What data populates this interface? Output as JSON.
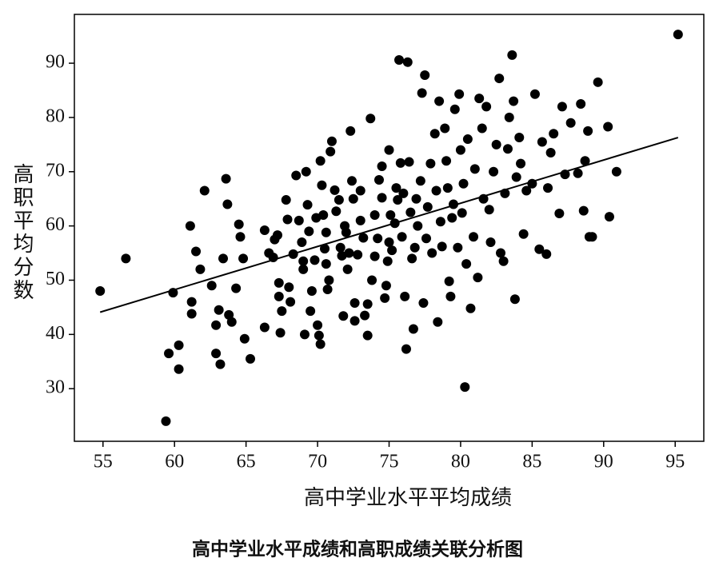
{
  "chart_data": {
    "type": "scatter",
    "title": "高中学业水平成绩和高职成绩关联分析图",
    "x_label": "高中学业水平平均成绩",
    "y_label": "高职平均分数",
    "color": "#000000",
    "xlim": [
      53,
      97
    ],
    "xticks": [
      55,
      60,
      65,
      70,
      75,
      80,
      85,
      90,
      95
    ],
    "ylim": [
      20.3,
      99
    ],
    "yticks": [
      30,
      40,
      50,
      60,
      70,
      80,
      90
    ],
    "grid": false,
    "x": [
      54.8,
      56.6,
      59.4,
      59.6,
      59.9,
      60.3,
      60.3,
      61.1,
      61.2,
      61.2,
      61.5,
      61.8,
      62.1,
      62.6,
      62.9,
      62.9,
      63.1,
      63.2,
      63.4,
      63.6,
      63.7,
      63.8,
      64,
      64.3,
      64.5,
      64.6,
      64.8,
      64.9,
      65.3,
      66.3,
      66.3,
      66.6,
      66.9,
      67,
      67.2,
      67.3,
      67.3,
      67.4,
      67.5,
      67.8,
      67.9,
      68,
      68.1,
      68.3,
      68.5,
      68.7,
      68.9,
      69,
      69,
      69.1,
      69.2,
      69.3,
      69.4,
      69.5,
      69.6,
      69.8,
      69.9,
      70,
      70.1,
      70.2,
      70.2,
      70.3,
      70.4,
      70.5,
      70.6,
      70.6,
      70.7,
      70.8,
      70.9,
      71,
      71.2,
      71.3,
      71.5,
      71.6,
      71.7,
      71.8,
      71.9,
      72,
      72.1,
      72.2,
      72.3,
      72.4,
      72.5,
      72.6,
      72.6,
      72.8,
      73,
      73,
      73.2,
      73.3,
      73.5,
      73.5,
      73.7,
      73.8,
      74,
      74,
      74.2,
      74.3,
      74.5,
      74.5,
      74.7,
      74.8,
      74.9,
      75,
      75,
      75.1,
      75.2,
      75.4,
      75.5,
      75.6,
      75.7,
      75.8,
      75.9,
      76,
      76.1,
      76.2,
      76.3,
      76.4,
      76.5,
      76.6,
      76.7,
      76.8,
      76.9,
      77,
      77.2,
      77.3,
      77.4,
      77.5,
      77.6,
      77.7,
      77.9,
      78,
      78.2,
      78.3,
      78.4,
      78.5,
      78.6,
      78.7,
      78.9,
      79,
      79.1,
      79.2,
      79.3,
      79.4,
      79.5,
      79.6,
      79.8,
      79.9,
      80,
      80.1,
      80.2,
      80.3,
      80.4,
      80.5,
      80.7,
      80.9,
      81,
      81.2,
      81.3,
      81.5,
      81.6,
      81.8,
      82,
      82.1,
      82.3,
      82.5,
      82.7,
      82.8,
      83,
      83.1,
      83.3,
      83.4,
      83.6,
      83.7,
      83.8,
      83.9,
      84.1,
      84.2,
      84.4,
      84.6,
      85,
      85.2,
      85.5,
      85.7,
      86,
      86.1,
      86.3,
      86.5,
      86.9,
      87.1,
      87.3,
      87.7,
      88.2,
      88.4,
      88.6,
      88.7,
      88.9,
      89,
      89.2,
      89.6,
      90.3,
      90.4,
      90.9,
      95.2
    ],
    "y": [
      48,
      54,
      24,
      36.5,
      47.7,
      38,
      33.6,
      60,
      46,
      43.8,
      55.3,
      52,
      66.5,
      49,
      36.5,
      41.7,
      44.5,
      34.5,
      54,
      68.7,
      64,
      43.6,
      42.3,
      48.5,
      60.3,
      58,
      54,
      39.2,
      35.5,
      41.3,
      59.2,
      55,
      54.2,
      57.5,
      58.3,
      49.5,
      47,
      40.3,
      44.3,
      64.8,
      61.2,
      48.7,
      46,
      54.8,
      69.3,
      61,
      57,
      53.5,
      52,
      40,
      70,
      63.9,
      59,
      44.3,
      48,
      53.7,
      61.5,
      41.7,
      39.8,
      38.2,
      72,
      67.5,
      62,
      55.8,
      58.8,
      53,
      48.3,
      50,
      73.7,
      75.6,
      66.6,
      62.7,
      64.8,
      56,
      54.5,
      43.4,
      60,
      58.8,
      52,
      55,
      77.5,
      68.3,
      65,
      45.8,
      42.5,
      54.7,
      61,
      66.5,
      57.8,
      43.5,
      45.6,
      39.8,
      79.8,
      50,
      62,
      54.4,
      57.7,
      68.5,
      71,
      65.2,
      46.7,
      49,
      53.5,
      74,
      57,
      62,
      55.5,
      60.5,
      67,
      64.8,
      90.6,
      71.6,
      58,
      66,
      47,
      37.3,
      90.2,
      71.8,
      62.5,
      54,
      41,
      56,
      65,
      60,
      68.3,
      84.5,
      45.8,
      87.8,
      57.7,
      63.5,
      71.5,
      55,
      77,
      66.5,
      42.3,
      83,
      60.8,
      56.2,
      78,
      72,
      67,
      49.8,
      47,
      61.5,
      64,
      81.5,
      56,
      84.3,
      74,
      62.4,
      67.8,
      30.3,
      53,
      76,
      44.8,
      58,
      70.5,
      50.5,
      83.5,
      78,
      65,
      82,
      63,
      57,
      70,
      75,
      87.2,
      55,
      53.5,
      66,
      74.2,
      80,
      91.5,
      83,
      46.5,
      69,
      76.3,
      71.5,
      58.5,
      66.5,
      67.8,
      84.3,
      55.7,
      75.5,
      54.8,
      67,
      73.5,
      77,
      62.3,
      82,
      69.5,
      79,
      69.7,
      82.5,
      62.8,
      72,
      77.5,
      58,
      58,
      86.5,
      78.3,
      61.7,
      70,
      95.3
    ],
    "trend_line": {
      "x": [
        54.8,
        95.2
      ],
      "y": [
        44.1,
        76.3
      ]
    }
  }
}
